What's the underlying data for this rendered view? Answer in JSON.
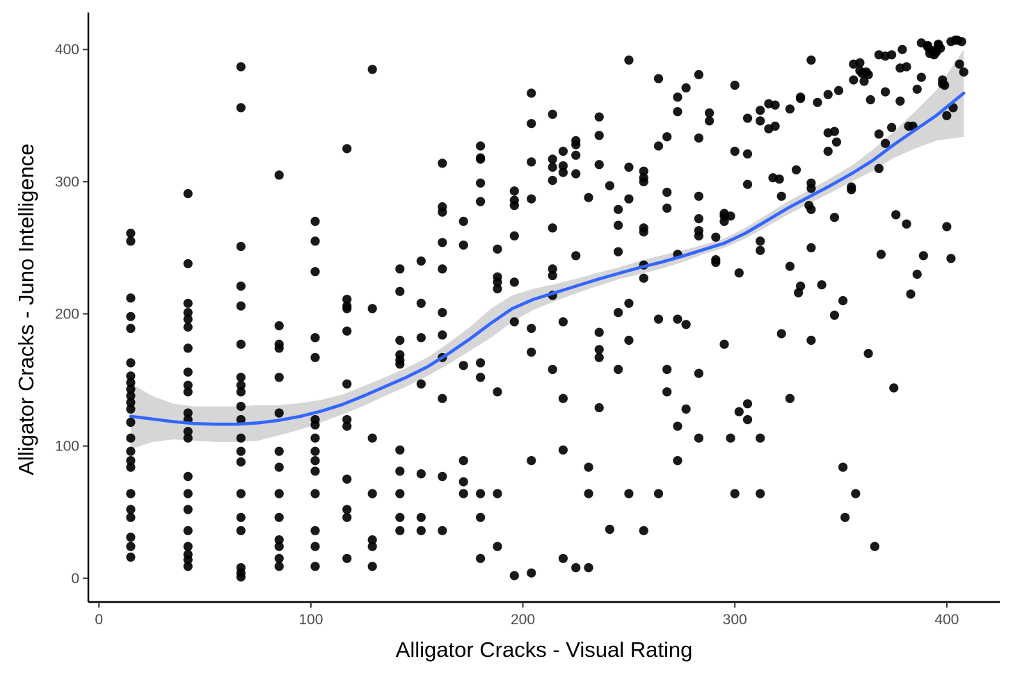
{
  "chart_data": {
    "type": "scatter",
    "title": "",
    "xlabel": "Alligator Cracks - Visual Rating",
    "ylabel": "Alligator Cracks - Juno Intelligence",
    "xlim": [
      -5,
      425
    ],
    "ylim": [
      -18,
      428
    ],
    "x_ticks": [
      0,
      100,
      200,
      300,
      400
    ],
    "y_ticks": [
      0,
      100,
      200,
      300,
      400
    ],
    "x_tick_labels": [
      "0",
      "100",
      "200",
      "300",
      "400"
    ],
    "y_tick_labels": [
      "0",
      "100",
      "200",
      "300",
      "400"
    ],
    "grid": false,
    "legend": "none",
    "colors": {
      "points": "#000000",
      "smooth_line": "#3366ff",
      "confidence_band": "#cccccc",
      "axis": "#000000"
    },
    "points": [
      [
        15,
        261
      ],
      [
        15,
        255
      ],
      [
        15,
        212
      ],
      [
        15,
        198
      ],
      [
        15,
        189
      ],
      [
        15,
        163
      ],
      [
        15,
        153
      ],
      [
        15,
        148
      ],
      [
        15,
        143
      ],
      [
        15,
        138
      ],
      [
        15,
        133
      ],
      [
        15,
        128
      ],
      [
        15,
        118
      ],
      [
        15,
        106
      ],
      [
        15,
        96
      ],
      [
        15,
        89
      ],
      [
        15,
        84
      ],
      [
        15,
        64
      ],
      [
        15,
        52
      ],
      [
        15,
        46
      ],
      [
        15,
        31
      ],
      [
        15,
        24
      ],
      [
        15,
        16
      ],
      [
        42,
        291
      ],
      [
        42,
        238
      ],
      [
        42,
        208
      ],
      [
        42,
        201
      ],
      [
        42,
        196
      ],
      [
        42,
        190
      ],
      [
        42,
        174
      ],
      [
        42,
        156
      ],
      [
        42,
        146
      ],
      [
        42,
        141
      ],
      [
        42,
        125
      ],
      [
        42,
        120
      ],
      [
        42,
        111
      ],
      [
        42,
        106
      ],
      [
        42,
        77
      ],
      [
        42,
        64
      ],
      [
        42,
        52
      ],
      [
        42,
        36
      ],
      [
        42,
        24
      ],
      [
        42,
        18
      ],
      [
        42,
        14
      ],
      [
        42,
        9
      ],
      [
        67,
        387
      ],
      [
        67,
        356
      ],
      [
        67,
        251
      ],
      [
        67,
        221
      ],
      [
        67,
        206
      ],
      [
        67,
        177
      ],
      [
        67,
        152
      ],
      [
        67,
        146
      ],
      [
        67,
        141
      ],
      [
        67,
        130
      ],
      [
        67,
        120
      ],
      [
        67,
        106
      ],
      [
        67,
        96
      ],
      [
        67,
        88
      ],
      [
        67,
        64
      ],
      [
        67,
        46
      ],
      [
        67,
        36
      ],
      [
        67,
        8
      ],
      [
        67,
        4
      ],
      [
        67,
        1
      ],
      [
        85,
        305
      ],
      [
        85,
        191
      ],
      [
        85,
        177
      ],
      [
        85,
        174
      ],
      [
        85,
        152
      ],
      [
        85,
        125
      ],
      [
        85,
        96
      ],
      [
        85,
        84
      ],
      [
        85,
        64
      ],
      [
        85,
        46
      ],
      [
        85,
        29
      ],
      [
        85,
        24
      ],
      [
        85,
        15
      ],
      [
        85,
        9
      ],
      [
        102,
        270
      ],
      [
        102,
        255
      ],
      [
        102,
        232
      ],
      [
        102,
        182
      ],
      [
        102,
        167
      ],
      [
        102,
        120
      ],
      [
        102,
        116
      ],
      [
        102,
        106
      ],
      [
        102,
        96
      ],
      [
        102,
        89
      ],
      [
        102,
        81
      ],
      [
        102,
        64
      ],
      [
        102,
        36
      ],
      [
        102,
        24
      ],
      [
        102,
        9
      ],
      [
        117,
        325
      ],
      [
        117,
        211
      ],
      [
        117,
        206
      ],
      [
        117,
        204
      ],
      [
        117,
        187
      ],
      [
        117,
        147
      ],
      [
        117,
        120
      ],
      [
        117,
        115
      ],
      [
        117,
        75
      ],
      [
        117,
        52
      ],
      [
        117,
        46
      ],
      [
        117,
        15
      ],
      [
        129,
        385
      ],
      [
        129,
        204
      ],
      [
        129,
        106
      ],
      [
        129,
        64
      ],
      [
        129,
        29
      ],
      [
        129,
        24
      ],
      [
        129,
        9
      ],
      [
        142,
        234
      ],
      [
        142,
        217
      ],
      [
        142,
        180
      ],
      [
        142,
        169
      ],
      [
        142,
        165
      ],
      [
        142,
        162
      ],
      [
        142,
        97
      ],
      [
        142,
        81
      ],
      [
        142,
        64
      ],
      [
        142,
        46
      ],
      [
        142,
        36
      ],
      [
        152,
        240
      ],
      [
        152,
        208
      ],
      [
        152,
        182
      ],
      [
        152,
        147
      ],
      [
        152,
        79
      ],
      [
        152,
        46
      ],
      [
        152,
        36
      ],
      [
        162,
        314
      ],
      [
        162,
        281
      ],
      [
        162,
        277
      ],
      [
        162,
        254
      ],
      [
        162,
        234
      ],
      [
        162,
        201
      ],
      [
        162,
        184
      ],
      [
        162,
        167
      ],
      [
        162,
        136
      ],
      [
        162,
        77
      ],
      [
        162,
        36
      ],
      [
        172,
        270
      ],
      [
        172,
        252
      ],
      [
        172,
        161
      ],
      [
        172,
        89
      ],
      [
        172,
        73
      ],
      [
        172,
        64
      ],
      [
        180,
        327
      ],
      [
        180,
        318
      ],
      [
        180,
        317
      ],
      [
        180,
        299
      ],
      [
        180,
        285
      ],
      [
        180,
        163
      ],
      [
        180,
        152
      ],
      [
        180,
        64
      ],
      [
        180,
        46
      ],
      [
        180,
        15
      ],
      [
        188,
        249
      ],
      [
        188,
        228
      ],
      [
        188,
        224
      ],
      [
        188,
        219
      ],
      [
        188,
        141
      ],
      [
        188,
        64
      ],
      [
        188,
        24
      ],
      [
        196,
        293
      ],
      [
        196,
        286
      ],
      [
        196,
        282
      ],
      [
        196,
        259
      ],
      [
        196,
        224
      ],
      [
        196,
        194
      ],
      [
        196,
        2
      ],
      [
        204,
        367
      ],
      [
        204,
        344
      ],
      [
        204,
        315
      ],
      [
        204,
        287
      ],
      [
        204,
        189
      ],
      [
        204,
        171
      ],
      [
        204,
        89
      ],
      [
        204,
        4
      ],
      [
        214,
        351
      ],
      [
        214,
        317
      ],
      [
        214,
        311
      ],
      [
        214,
        301
      ],
      [
        214,
        265
      ],
      [
        214,
        234
      ],
      [
        214,
        229
      ],
      [
        214,
        214
      ],
      [
        214,
        158
      ],
      [
        219,
        323
      ],
      [
        219,
        312
      ],
      [
        219,
        307
      ],
      [
        219,
        194
      ],
      [
        219,
        136
      ],
      [
        219,
        97
      ],
      [
        219,
        15
      ],
      [
        225,
        331
      ],
      [
        225,
        328
      ],
      [
        225,
        320
      ],
      [
        225,
        306
      ],
      [
        225,
        244
      ],
      [
        225,
        8
      ],
      [
        231,
        288
      ],
      [
        231,
        84
      ],
      [
        231,
        64
      ],
      [
        231,
        8
      ],
      [
        236,
        349
      ],
      [
        236,
        335
      ],
      [
        236,
        313
      ],
      [
        236,
        186
      ],
      [
        236,
        173
      ],
      [
        236,
        167
      ],
      [
        236,
        129
      ],
      [
        241,
        297
      ],
      [
        241,
        37
      ],
      [
        245,
        279
      ],
      [
        245,
        267
      ],
      [
        245,
        247
      ],
      [
        245,
        201
      ],
      [
        245,
        158
      ],
      [
        250,
        392
      ],
      [
        250,
        311
      ],
      [
        250,
        287
      ],
      [
        250,
        208
      ],
      [
        250,
        180
      ],
      [
        250,
        64
      ],
      [
        257,
        308
      ],
      [
        257,
        303
      ],
      [
        257,
        300
      ],
      [
        257,
        265
      ],
      [
        257,
        262
      ],
      [
        257,
        237
      ],
      [
        257,
        227
      ],
      [
        257,
        36
      ],
      [
        264,
        378
      ],
      [
        264,
        327
      ],
      [
        264,
        196
      ],
      [
        264,
        64
      ],
      [
        268,
        334
      ],
      [
        268,
        292
      ],
      [
        268,
        280
      ],
      [
        268,
        158
      ],
      [
        268,
        141
      ],
      [
        273,
        364
      ],
      [
        273,
        353
      ],
      [
        273,
        245
      ],
      [
        273,
        196
      ],
      [
        273,
        115
      ],
      [
        273,
        89
      ],
      [
        277,
        371
      ],
      [
        277,
        192
      ],
      [
        277,
        128
      ],
      [
        283,
        381
      ],
      [
        283,
        333
      ],
      [
        283,
        289
      ],
      [
        283,
        272
      ],
      [
        283,
        263
      ],
      [
        283,
        259
      ],
      [
        283,
        155
      ],
      [
        283,
        106
      ],
      [
        288,
        352
      ],
      [
        288,
        346
      ],
      [
        291,
        258
      ],
      [
        291,
        241
      ],
      [
        291,
        239
      ],
      [
        295,
        276
      ],
      [
        295,
        274
      ],
      [
        295,
        270
      ],
      [
        295,
        177
      ],
      [
        298,
        274
      ],
      [
        298,
        106
      ],
      [
        300,
        373
      ],
      [
        300,
        323
      ],
      [
        300,
        64
      ],
      [
        302,
        231
      ],
      [
        302,
        126
      ],
      [
        306,
        348
      ],
      [
        306,
        321
      ],
      [
        306,
        298
      ],
      [
        306,
        132
      ],
      [
        306,
        120
      ],
      [
        312,
        354
      ],
      [
        312,
        346
      ],
      [
        312,
        255
      ],
      [
        312,
        248
      ],
      [
        312,
        106
      ],
      [
        312,
        64
      ],
      [
        316,
        359
      ],
      [
        316,
        340
      ],
      [
        319,
        358
      ],
      [
        319,
        342
      ],
      [
        318,
        303
      ],
      [
        321,
        302
      ],
      [
        322,
        289
      ],
      [
        322,
        185
      ],
      [
        326,
        355
      ],
      [
        326,
        236
      ],
      [
        326,
        136
      ],
      [
        329,
        309
      ],
      [
        331,
        364
      ],
      [
        331,
        363
      ],
      [
        330,
        216
      ],
      [
        331,
        221
      ],
      [
        335,
        282
      ],
      [
        336,
        279
      ],
      [
        336,
        299
      ],
      [
        336,
        295
      ],
      [
        336,
        250
      ],
      [
        336,
        180
      ],
      [
        336,
        392
      ],
      [
        339,
        360
      ],
      [
        341,
        222
      ],
      [
        344,
        366
      ],
      [
        344,
        337
      ],
      [
        344,
        323
      ],
      [
        347,
        338
      ],
      [
        348,
        330
      ],
      [
        347,
        273
      ],
      [
        347,
        199
      ],
      [
        349,
        369
      ],
      [
        351,
        210
      ],
      [
        351,
        84
      ],
      [
        352,
        46
      ],
      [
        355,
        296
      ],
      [
        355,
        294
      ],
      [
        356,
        389
      ],
      [
        356,
        377
      ],
      [
        357,
        64
      ],
      [
        359,
        390
      ],
      [
        359,
        384
      ],
      [
        360,
        382
      ],
      [
        361,
        376
      ],
      [
        362,
        383
      ],
      [
        363,
        381
      ],
      [
        364,
        362
      ],
      [
        363,
        170
      ],
      [
        366,
        24
      ],
      [
        368,
        396
      ],
      [
        368,
        336
      ],
      [
        368,
        310
      ],
      [
        369,
        245
      ],
      [
        371,
        368
      ],
      [
        371,
        329
      ],
      [
        371,
        395
      ],
      [
        374,
        396
      ],
      [
        374,
        341
      ],
      [
        375,
        144
      ],
      [
        376,
        275
      ],
      [
        378,
        386
      ],
      [
        378,
        361
      ],
      [
        379,
        400
      ],
      [
        381,
        387
      ],
      [
        381,
        268
      ],
      [
        382,
        342
      ],
      [
        383,
        215
      ],
      [
        384,
        342
      ],
      [
        386,
        370
      ],
      [
        386,
        230
      ],
      [
        388,
        405
      ],
      [
        388,
        379
      ],
      [
        389,
        244
      ],
      [
        391,
        403
      ],
      [
        391,
        402
      ],
      [
        392,
        397
      ],
      [
        392,
        400
      ],
      [
        394,
        399
      ],
      [
        394,
        396
      ],
      [
        395,
        398
      ],
      [
        396,
        404
      ],
      [
        396,
        403
      ],
      [
        397,
        401
      ],
      [
        398,
        377
      ],
      [
        398,
        374
      ],
      [
        399,
        373
      ],
      [
        400,
        350
      ],
      [
        400,
        266
      ],
      [
        402,
        406
      ],
      [
        402,
        242
      ],
      [
        403,
        356
      ],
      [
        404,
        407
      ],
      [
        405,
        407
      ],
      [
        406,
        389
      ],
      [
        407,
        406
      ],
      [
        408,
        383
      ]
    ],
    "smooth_line": {
      "x": [
        15,
        25,
        35,
        45,
        55,
        65,
        75,
        85,
        95,
        105,
        115,
        125,
        135,
        145,
        155,
        165,
        175,
        185,
        195,
        205,
        215,
        225,
        235,
        245,
        255,
        265,
        275,
        285,
        295,
        305,
        315,
        325,
        335,
        345,
        355,
        365,
        375,
        385,
        395,
        408
      ],
      "y": [
        122.5,
        120.5,
        118.5,
        117,
        116.5,
        116.5,
        117.5,
        119.5,
        122.5,
        126.5,
        131.5,
        138,
        145,
        152,
        160,
        170,
        181,
        193,
        204,
        211,
        216,
        221,
        226,
        230.5,
        235,
        239,
        243.5,
        248.5,
        253.5,
        261,
        270.5,
        280,
        288.5,
        297,
        306,
        316,
        328,
        339,
        350,
        367
      ]
    },
    "confidence_band": {
      "x": [
        15,
        25,
        35,
        45,
        55,
        65,
        75,
        85,
        95,
        105,
        115,
        125,
        135,
        145,
        155,
        165,
        175,
        185,
        195,
        205,
        215,
        225,
        235,
        245,
        255,
        265,
        275,
        285,
        295,
        305,
        315,
        325,
        335,
        345,
        355,
        365,
        375,
        385,
        395,
        408
      ],
      "upper": [
        147.5,
        138,
        132,
        130,
        130,
        130,
        131,
        131,
        132.5,
        135,
        139,
        145.5,
        152,
        159,
        167,
        178,
        190,
        204,
        214,
        219,
        222.5,
        226.5,
        231,
        235,
        240,
        244,
        248,
        252,
        257,
        265,
        275,
        285,
        293.5,
        302.5,
        312,
        324,
        338,
        353,
        369,
        400
      ],
      "lower": [
        97.5,
        103,
        105,
        104,
        103,
        103,
        104,
        108,
        112.5,
        118,
        124,
        130.5,
        138,
        145,
        153,
        162,
        172,
        182,
        194,
        203,
        209.5,
        215.5,
        221,
        226,
        230,
        234,
        239,
        245,
        250,
        257,
        266,
        275,
        283.5,
        291.5,
        300,
        308,
        318,
        325,
        331,
        334
      ]
    }
  }
}
